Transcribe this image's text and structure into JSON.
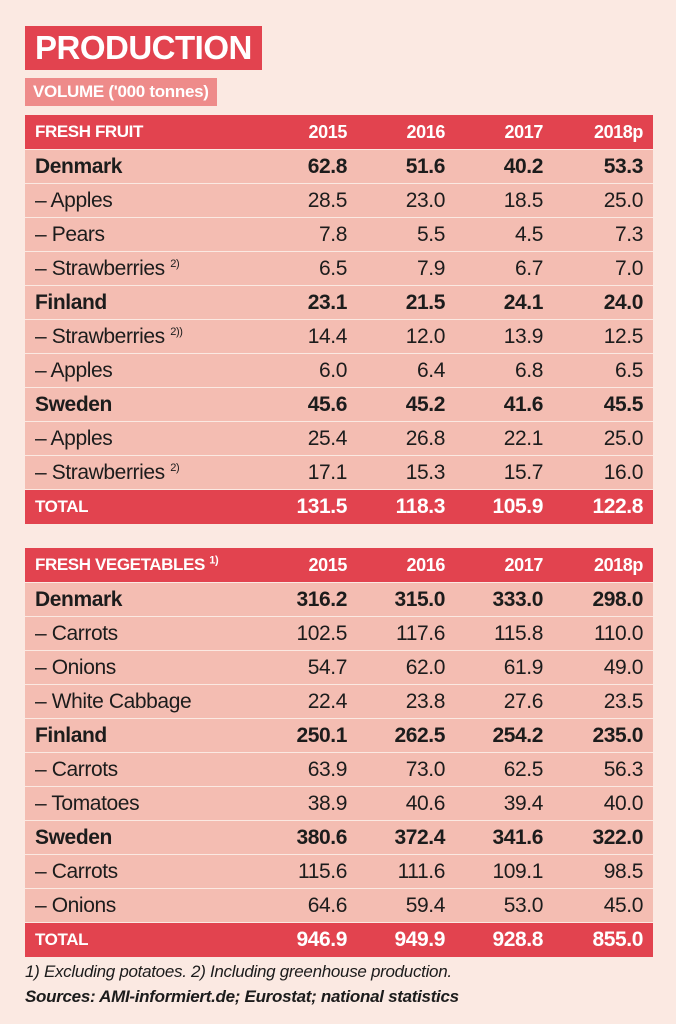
{
  "title": "PRODUCTION",
  "subtitle": "VOLUME ('000 tonnes)",
  "chart_data": [
    {
      "type": "table",
      "header": {
        "label": "FRESH FRUIT",
        "note": "",
        "years": [
          "2015",
          "2016",
          "2017",
          "2018p"
        ]
      },
      "rows": [
        {
          "kind": "country",
          "label": "Denmark",
          "note": "",
          "values": [
            "62.8",
            "51.6",
            "40.2",
            "53.3"
          ]
        },
        {
          "kind": "item",
          "label": "– Apples",
          "note": "",
          "values": [
            "28.5",
            "23.0",
            "18.5",
            "25.0"
          ]
        },
        {
          "kind": "item",
          "label": "– Pears",
          "note": "",
          "values": [
            "7.8",
            "5.5",
            "4.5",
            "7.3"
          ]
        },
        {
          "kind": "item",
          "label": "– Strawberries",
          "note": "2)",
          "values": [
            "6.5",
            "7.9",
            "6.7",
            "7.0"
          ]
        },
        {
          "kind": "country",
          "label": "Finland",
          "note": "",
          "values": [
            "23.1",
            "21.5",
            "24.1",
            "24.0"
          ]
        },
        {
          "kind": "item",
          "label": "– Strawberries",
          "note": "2))",
          "values": [
            "14.4",
            "12.0",
            "13.9",
            "12.5"
          ]
        },
        {
          "kind": "item",
          "label": "– Apples",
          "note": "",
          "values": [
            "6.0",
            "6.4",
            "6.8",
            "6.5"
          ]
        },
        {
          "kind": "country",
          "label": "Sweden",
          "note": "",
          "values": [
            "45.6",
            "45.2",
            "41.6",
            "45.5"
          ]
        },
        {
          "kind": "item",
          "label": "– Apples",
          "note": "",
          "values": [
            "25.4",
            "26.8",
            "22.1",
            "25.0"
          ]
        },
        {
          "kind": "item",
          "label": "– Strawberries",
          "note": "2)",
          "values": [
            "17.1",
            "15.3",
            "15.7",
            "16.0"
          ]
        }
      ],
      "total": {
        "label": "TOTAL",
        "values": [
          "131.5",
          "118.3",
          "105.9",
          "122.8"
        ]
      }
    },
    {
      "type": "table",
      "header": {
        "label": "FRESH VEGETABLES",
        "note": "1)",
        "years": [
          "2015",
          "2016",
          "2017",
          "2018p"
        ]
      },
      "rows": [
        {
          "kind": "country",
          "label": "Denmark",
          "note": "",
          "values": [
            "316.2",
            "315.0",
            "333.0",
            "298.0"
          ]
        },
        {
          "kind": "item",
          "label": "– Carrots",
          "note": "",
          "values": [
            "102.5",
            "117.6",
            "115.8",
            "110.0"
          ]
        },
        {
          "kind": "item",
          "label": "– Onions",
          "note": "",
          "values": [
            "54.7",
            "62.0",
            "61.9",
            "49.0"
          ]
        },
        {
          "kind": "item",
          "label": "– White Cabbage",
          "note": "",
          "values": [
            "22.4",
            "23.8",
            "27.6",
            "23.5"
          ]
        },
        {
          "kind": "country",
          "label": "Finland",
          "note": "",
          "values": [
            "250.1",
            "262.5",
            "254.2",
            "235.0"
          ]
        },
        {
          "kind": "item",
          "label": "– Carrots",
          "note": "",
          "values": [
            "63.9",
            "73.0",
            "62.5",
            "56.3"
          ]
        },
        {
          "kind": "item",
          "label": "– Tomatoes",
          "note": "",
          "values": [
            "38.9",
            "40.6",
            "39.4",
            "40.0"
          ]
        },
        {
          "kind": "country",
          "label": "Sweden",
          "note": "",
          "values": [
            "380.6",
            "372.4",
            "341.6",
            "322.0"
          ]
        },
        {
          "kind": "item",
          "label": "– Carrots",
          "note": "",
          "values": [
            "115.6",
            "111.6",
            "109.1",
            "98.5"
          ]
        },
        {
          "kind": "item",
          "label": "– Onions",
          "note": "",
          "values": [
            "64.6",
            "59.4",
            "53.0",
            "45.0"
          ]
        }
      ],
      "total": {
        "label": "TOTAL",
        "values": [
          "946.9",
          "949.9",
          "928.8",
          "855.0"
        ]
      }
    }
  ],
  "footnotes": {
    "notes": "1) Excluding potatoes. 2) Including greenhouse production.",
    "sources": "Sources: AMI-informiert.de; Eurostat; national statistics"
  },
  "colors": {
    "accent": "#e2434f",
    "subtitle_bg": "#ee8b8a",
    "row_bg": "#f4bdb2",
    "page_bg": "#fbe9e2"
  }
}
